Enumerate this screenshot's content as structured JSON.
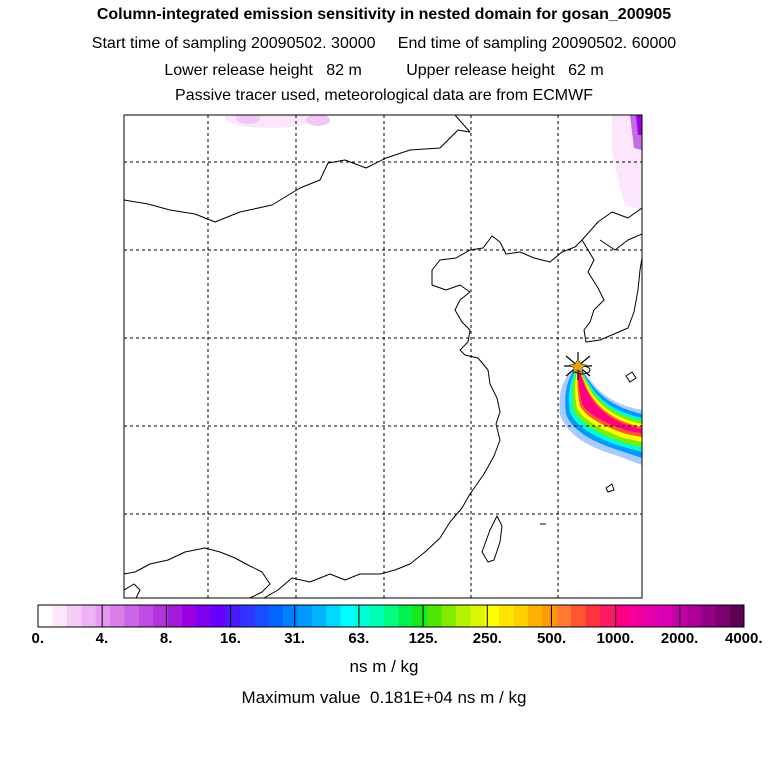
{
  "header": {
    "title": "Column-integrated emission sensitivity in nested domain for gosan_200905",
    "line1": "Start time of sampling 20090502. 30000     End time of sampling 20090502. 60000",
    "line2": "Lower release height   82 m          Upper release height   62 m",
    "line3": "Passive tracer used, meteorological data are from ECMWF"
  },
  "station": {
    "name": "gosan",
    "marker": "star-icon"
  },
  "colorbar": {
    "colors": [
      "#ffffff",
      "#fbe6fb",
      "#f5ccf7",
      "#eeb3f4",
      "#e699f0",
      "#d97fec",
      "#cc66e8",
      "#bf4ce4",
      "#b233e0",
      "#a519dc",
      "#9900e6",
      "#8000f2",
      "#6600ff",
      "#4d1aff",
      "#3333ff",
      "#1a4dff",
      "#0066ff",
      "#0080ff",
      "#0099ff",
      "#00b3ff",
      "#00d9ff",
      "#00ffff",
      "#00ffd9",
      "#00ffb3",
      "#00ff80",
      "#00f24d",
      "#19e619",
      "#4ce600",
      "#80ec00",
      "#b3f200",
      "#d9f700",
      "#ffff00",
      "#ffe600",
      "#ffd000",
      "#ffb300",
      "#ff9900",
      "#ff7a33",
      "#ff5533",
      "#ff3340",
      "#ff1a66",
      "#ff0080",
      "#f20099",
      "#e600aa",
      "#d900b3",
      "#c400a8",
      "#ad0099",
      "#940088",
      "#7a0070",
      "#5c0052"
    ],
    "ticks": [
      "0.",
      "4.",
      "8.",
      "16.",
      "31.",
      "63.",
      "125.",
      "250.",
      "500.",
      "1000.",
      "2000.",
      "4000."
    ],
    "units": "ns m / kg"
  },
  "max_value": "Maximum value  0.181E+04 ns m / kg"
}
